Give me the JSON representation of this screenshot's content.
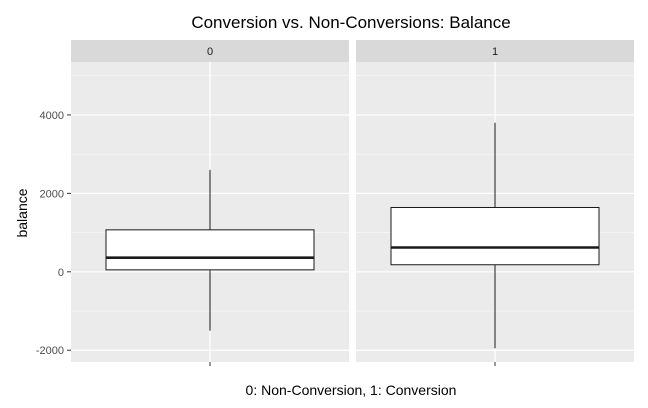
{
  "chart_data": {
    "type": "boxplot",
    "title": "Conversion vs. Non-Conversions: Balance",
    "xlabel": "0: Non-Conversion, 1: Conversion",
    "ylabel": "balance",
    "ylim": [
      -2300,
      5350
    ],
    "y_ticks": [
      -2000,
      0,
      2000,
      4000
    ],
    "y_tick_labels": [
      "-2000",
      "0",
      "2000",
      "4000"
    ],
    "grid": true,
    "facets": [
      {
        "label": "0",
        "box": {
          "lower_whisker": -1500,
          "q1": 50,
          "median": 360,
          "q3": 1070,
          "upper_whisker": 2600
        }
      },
      {
        "label": "1",
        "box": {
          "lower_whisker": -1950,
          "q1": 180,
          "median": 620,
          "q3": 1640,
          "upper_whisker": 3800
        }
      }
    ],
    "colors": {
      "panel_background": "#ebebeb",
      "strip_background": "#d9d9d9",
      "grid_major": "#ffffff",
      "box_fill": "#ffffff",
      "box_stroke": "#1a1a1a"
    }
  }
}
